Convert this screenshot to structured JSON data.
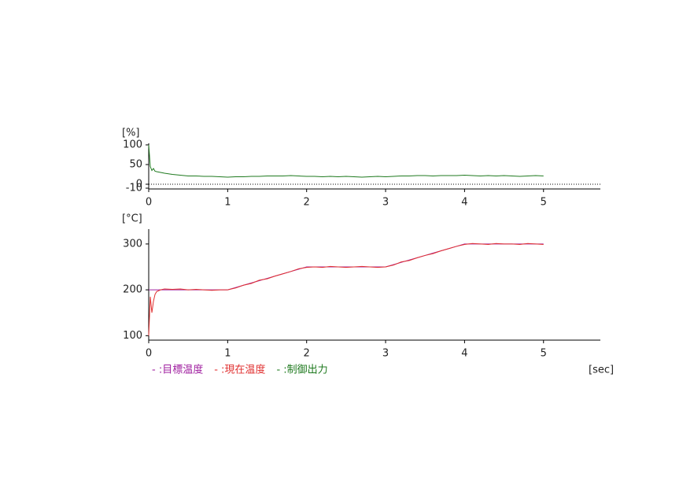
{
  "chart_data": [
    {
      "type": "line",
      "y_label": "[%]",
      "x": [
        0,
        0.02,
        0.04,
        0.06,
        0.08,
        0.1,
        0.15,
        0.2,
        0.3,
        0.4,
        0.5,
        0.6,
        0.7,
        0.8,
        0.9,
        1.0,
        1.1,
        1.2,
        1.3,
        1.4,
        1.5,
        1.6,
        1.7,
        1.8,
        1.9,
        2.0,
        2.1,
        2.2,
        2.3,
        2.4,
        2.5,
        2.6,
        2.7,
        2.8,
        2.9,
        3.0,
        3.1,
        3.2,
        3.3,
        3.4,
        3.5,
        3.6,
        3.7,
        3.8,
        3.9,
        4.0,
        4.1,
        4.2,
        4.3,
        4.4,
        4.5,
        4.6,
        4.7,
        4.8,
        4.9,
        5.0
      ],
      "series": [
        {
          "name": "- :制御出力",
          "color": "#1f7a1f",
          "values": [
            100,
            45,
            35,
            40,
            33,
            32,
            30,
            28,
            25,
            23,
            21,
            21,
            20,
            20,
            19,
            18,
            19,
            19,
            20,
            20,
            21,
            21,
            21,
            22,
            21,
            20,
            20,
            19,
            20,
            19,
            20,
            19,
            18,
            19,
            20,
            19,
            20,
            21,
            21,
            22,
            22,
            21,
            22,
            22,
            22,
            23,
            22,
            21,
            22,
            21,
            22,
            21,
            20,
            21,
            22,
            21
          ]
        }
      ],
      "xlim": [
        0,
        5.72
      ],
      "xticks": [
        0,
        1,
        2,
        3,
        4,
        5
      ],
      "ylim": [
        -10,
        100
      ],
      "yticks": [
        100,
        50,
        0,
        -10
      ],
      "hlines": [
        0
      ]
    },
    {
      "type": "line",
      "y_label": "[°C]",
      "x_label": "[sec]",
      "x": [
        0,
        0.02,
        0.04,
        0.06,
        0.08,
        0.1,
        0.15,
        0.2,
        0.3,
        0.4,
        0.5,
        0.6,
        0.7,
        0.8,
        0.9,
        1.0,
        1.1,
        1.2,
        1.3,
        1.4,
        1.5,
        1.6,
        1.7,
        1.8,
        1.9,
        2.0,
        2.1,
        2.2,
        2.3,
        2.4,
        2.5,
        2.6,
        2.7,
        2.8,
        2.9,
        3.0,
        3.1,
        3.2,
        3.3,
        3.4,
        3.5,
        3.6,
        3.7,
        3.8,
        3.9,
        4.0,
        4.1,
        4.2,
        4.3,
        4.4,
        4.5,
        4.6,
        4.7,
        4.8,
        4.9,
        5.0
      ],
      "series": [
        {
          "name": "- :目標温度",
          "color": "#a020a0",
          "values": [
            200,
            200,
            200,
            200,
            200,
            200,
            200,
            200,
            200,
            200,
            200,
            200,
            200,
            200,
            200,
            200,
            205,
            210,
            215,
            220,
            225,
            230,
            235,
            240,
            245,
            250,
            250,
            250,
            250,
            250,
            250,
            250,
            250,
            250,
            250,
            250,
            255,
            260,
            265,
            270,
            275,
            280,
            285,
            290,
            295,
            300,
            300,
            300,
            300,
            300,
            300,
            300,
            300,
            300,
            300,
            300
          ]
        },
        {
          "name": "- :現在温度",
          "color": "#e03030",
          "values": [
            100,
            185,
            150,
            175,
            190,
            196,
            200,
            202,
            201,
            202,
            200,
            201,
            200,
            199,
            200,
            200,
            204,
            210,
            214,
            221,
            224,
            230,
            235,
            240,
            246,
            249,
            250,
            249,
            251,
            250,
            249,
            250,
            251,
            250,
            249,
            250,
            254,
            261,
            264,
            270,
            275,
            279,
            285,
            290,
            295,
            299,
            301,
            300,
            299,
            301,
            300,
            300,
            299,
            301,
            300,
            299
          ]
        }
      ],
      "xlim": [
        0,
        5.72
      ],
      "xticks": [
        0,
        1,
        2,
        3,
        4,
        5
      ],
      "ylim": [
        92,
        329
      ],
      "yticks": [
        100,
        200,
        300
      ]
    }
  ]
}
